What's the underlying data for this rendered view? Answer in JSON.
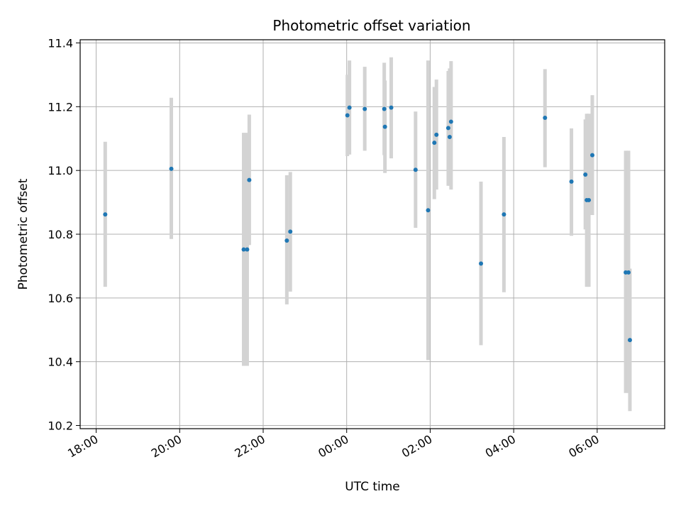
{
  "chart_data": {
    "type": "scatter",
    "title": "Photometric offset variation",
    "xlabel": "UTC time",
    "ylabel": "Photometric offset",
    "grid": true,
    "xlim": [
      "17:37",
      "07:37"
    ],
    "ylim": [
      10.19,
      11.41
    ],
    "x_ticks": [
      "18:00",
      "20:00",
      "22:00",
      "00:00",
      "02:00",
      "04:00",
      "06:00"
    ],
    "y_ticks": [
      "10.2",
      "10.4",
      "10.6",
      "10.8",
      "11.0",
      "11.2",
      "11.4"
    ],
    "point_color": "#1f77b4",
    "errorbar_color": "#d3d3d3",
    "points": [
      {
        "x": "18:13",
        "y": 10.862,
        "y_low": 10.635,
        "y_high": 11.09
      },
      {
        "x": "19:48",
        "y": 11.005,
        "y_low": 10.785,
        "y_high": 11.228
      },
      {
        "x": "21:32",
        "y": 10.752,
        "y_low": 10.387,
        "y_high": 11.118
      },
      {
        "x": "21:37",
        "y": 10.752,
        "y_low": 10.387,
        "y_high": 11.118
      },
      {
        "x": "21:40",
        "y": 10.97,
        "y_low": 10.766,
        "y_high": 11.175
      },
      {
        "x": "22:34",
        "y": 10.78,
        "y_low": 10.58,
        "y_high": 10.985
      },
      {
        "x": "22:39",
        "y": 10.808,
        "y_low": 10.62,
        "y_high": 10.995
      },
      {
        "x": "00:01",
        "y": 11.173,
        "y_low": 11.045,
        "y_high": 11.3
      },
      {
        "x": "00:04",
        "y": 11.197,
        "y_low": 11.05,
        "y_high": 11.345
      },
      {
        "x": "00:26",
        "y": 11.193,
        "y_low": 11.062,
        "y_high": 11.325
      },
      {
        "x": "00:54",
        "y": 11.193,
        "y_low": 11.048,
        "y_high": 11.338
      },
      {
        "x": "00:55",
        "y": 11.137,
        "y_low": 10.992,
        "y_high": 11.282
      },
      {
        "x": "01:04",
        "y": 11.197,
        "y_low": 11.038,
        "y_high": 11.355
      },
      {
        "x": "01:39",
        "y": 11.002,
        "y_low": 10.82,
        "y_high": 11.185
      },
      {
        "x": "01:57",
        "y": 10.875,
        "y_low": 10.405,
        "y_high": 11.345
      },
      {
        "x": "02:06",
        "y": 11.087,
        "y_low": 10.91,
        "y_high": 11.262
      },
      {
        "x": "02:09",
        "y": 11.112,
        "y_low": 10.94,
        "y_high": 11.285
      },
      {
        "x": "02:26",
        "y": 11.133,
        "y_low": 10.952,
        "y_high": 11.312
      },
      {
        "x": "02:28",
        "y": 11.105,
        "y_low": 10.952,
        "y_high": 11.32
      },
      {
        "x": "02:30",
        "y": 11.153,
        "y_low": 10.94,
        "y_high": 11.343
      },
      {
        "x": "03:13",
        "y": 10.708,
        "y_low": 10.452,
        "y_high": 10.965
      },
      {
        "x": "03:46",
        "y": 10.862,
        "y_low": 10.618,
        "y_high": 11.105
      },
      {
        "x": "04:45",
        "y": 11.165,
        "y_low": 11.01,
        "y_high": 11.318
      },
      {
        "x": "05:23",
        "y": 10.965,
        "y_low": 10.795,
        "y_high": 11.132
      },
      {
        "x": "05:43",
        "y": 10.987,
        "y_low": 10.815,
        "y_high": 11.16
      },
      {
        "x": "05:45",
        "y": 10.907,
        "y_low": 10.635,
        "y_high": 11.178
      },
      {
        "x": "05:48",
        "y": 10.907,
        "y_low": 10.635,
        "y_high": 11.178
      },
      {
        "x": "05:53",
        "y": 11.048,
        "y_low": 10.86,
        "y_high": 11.236
      },
      {
        "x": "06:41",
        "y": 10.68,
        "y_low": 10.302,
        "y_high": 11.062
      },
      {
        "x": "06:45",
        "y": 10.68,
        "y_low": 10.302,
        "y_high": 11.062
      },
      {
        "x": "06:47",
        "y": 10.468,
        "y_low": 10.245,
        "y_high": 10.692
      }
    ]
  }
}
